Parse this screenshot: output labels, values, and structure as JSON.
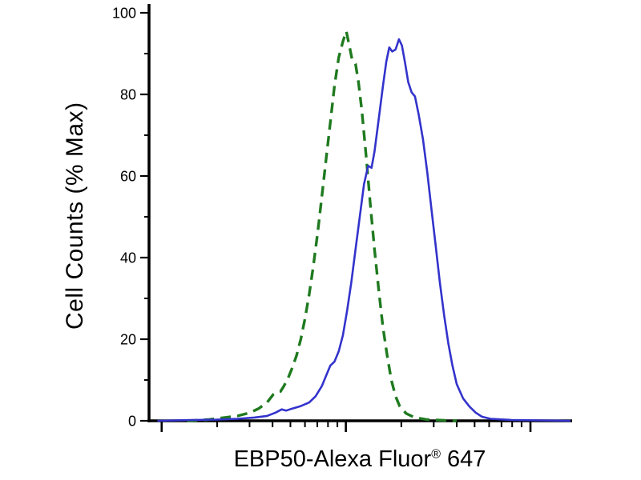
{
  "figure": {
    "background_color": "#ffffff",
    "axis_color": "#000000"
  },
  "chart_data": {
    "type": "line",
    "subtype": "flow-cytometry-overlay-histogram",
    "title": "",
    "xlabel_main": "EBP50-Alexa Fluor",
    "xlabel_sup": "®",
    "xlabel_suffix": " 647",
    "ylabel": "Cell Counts (% Max)",
    "grid": false,
    "legend": "none",
    "y_axis": {
      "range": [
        0,
        100
      ],
      "major_ticks": [
        0,
        20,
        40,
        60,
        80,
        100
      ],
      "minor_ticks": [
        10,
        30,
        50,
        70,
        90
      ]
    },
    "x_axis": {
      "scale": "log",
      "tick_labels": "none",
      "range_normalized": [
        0,
        1
      ],
      "major_ticks": [
        0.03,
        0.467,
        0.905
      ],
      "minor_ticks": [
        0.1616,
        0.2385,
        0.2931,
        0.3355,
        0.37,
        0.3993,
        0.4246,
        0.4469,
        0.5986,
        0.6755,
        0.7301,
        0.7725,
        0.807,
        0.8363,
        0.8616,
        0.8839
      ]
    },
    "series": [
      {
        "id": "green-dashed-curve",
        "name": "green dashed histogram",
        "style": "dashed",
        "color": "#1f7a1f",
        "peak_percent_max": 96,
        "points": [
          [
            0.09,
            0
          ],
          [
            0.14,
            0.3
          ],
          [
            0.18,
            0.8
          ],
          [
            0.21,
            1.2
          ],
          [
            0.24,
            2
          ],
          [
            0.26,
            3
          ],
          [
            0.28,
            4.5
          ],
          [
            0.295,
            6.5
          ],
          [
            0.303,
            7
          ],
          [
            0.312,
            7.2
          ],
          [
            0.32,
            8.5
          ],
          [
            0.33,
            10.5
          ],
          [
            0.34,
            13
          ],
          [
            0.35,
            16
          ],
          [
            0.36,
            20
          ],
          [
            0.37,
            25
          ],
          [
            0.38,
            31
          ],
          [
            0.39,
            38
          ],
          [
            0.4,
            46
          ],
          [
            0.41,
            55
          ],
          [
            0.42,
            64
          ],
          [
            0.43,
            73
          ],
          [
            0.44,
            82
          ],
          [
            0.45,
            89
          ],
          [
            0.46,
            93
          ],
          [
            0.468,
            95.5
          ],
          [
            0.475,
            92
          ],
          [
            0.482,
            88.5
          ],
          [
            0.49,
            87.5
          ],
          [
            0.497,
            83
          ],
          [
            0.505,
            76
          ],
          [
            0.515,
            65
          ],
          [
            0.525,
            53
          ],
          [
            0.535,
            42
          ],
          [
            0.545,
            32
          ],
          [
            0.555,
            23
          ],
          [
            0.565,
            16
          ],
          [
            0.575,
            10
          ],
          [
            0.585,
            6
          ],
          [
            0.595,
            3.5
          ],
          [
            0.61,
            1.8
          ],
          [
            0.63,
            0.8
          ],
          [
            0.66,
            0.3
          ],
          [
            0.7,
            0.1
          ],
          [
            0.73,
            0
          ]
        ]
      },
      {
        "id": "blue-solid-curve",
        "name": "blue solid histogram",
        "style": "solid",
        "color": "#3333cc",
        "peak_percent_max": 93.5,
        "points": [
          [
            0.02,
            0
          ],
          [
            0.1,
            0.2
          ],
          [
            0.16,
            0.3
          ],
          [
            0.21,
            0.5
          ],
          [
            0.25,
            0.8
          ],
          [
            0.28,
            1.2
          ],
          [
            0.3,
            2
          ],
          [
            0.315,
            2.8
          ],
          [
            0.325,
            2.5
          ],
          [
            0.34,
            3
          ],
          [
            0.36,
            3.6
          ],
          [
            0.38,
            4.5
          ],
          [
            0.395,
            6
          ],
          [
            0.41,
            8.5
          ],
          [
            0.42,
            11
          ],
          [
            0.43,
            13.5
          ],
          [
            0.44,
            14.5
          ],
          [
            0.45,
            17
          ],
          [
            0.46,
            21
          ],
          [
            0.47,
            27
          ],
          [
            0.48,
            34
          ],
          [
            0.49,
            42
          ],
          [
            0.5,
            50
          ],
          [
            0.51,
            58
          ],
          [
            0.52,
            62.5
          ],
          [
            0.528,
            62
          ],
          [
            0.535,
            66
          ],
          [
            0.545,
            74
          ],
          [
            0.555,
            82
          ],
          [
            0.563,
            88
          ],
          [
            0.57,
            91.5
          ],
          [
            0.577,
            90.5
          ],
          [
            0.585,
            91
          ],
          [
            0.593,
            93.5
          ],
          [
            0.6,
            92
          ],
          [
            0.607,
            88
          ],
          [
            0.615,
            83
          ],
          [
            0.623,
            80.5
          ],
          [
            0.631,
            79.5
          ],
          [
            0.64,
            75
          ],
          [
            0.65,
            69
          ],
          [
            0.66,
            61
          ],
          [
            0.67,
            52
          ],
          [
            0.68,
            43
          ],
          [
            0.69,
            34
          ],
          [
            0.7,
            26
          ],
          [
            0.71,
            19
          ],
          [
            0.72,
            13.5
          ],
          [
            0.73,
            9
          ],
          [
            0.745,
            5.5
          ],
          [
            0.76,
            3.5
          ],
          [
            0.775,
            2
          ],
          [
            0.79,
            1
          ],
          [
            0.81,
            0.5
          ],
          [
            0.86,
            0.2
          ],
          [
            0.93,
            0.1
          ],
          [
            1.0,
            0
          ]
        ]
      }
    ]
  }
}
